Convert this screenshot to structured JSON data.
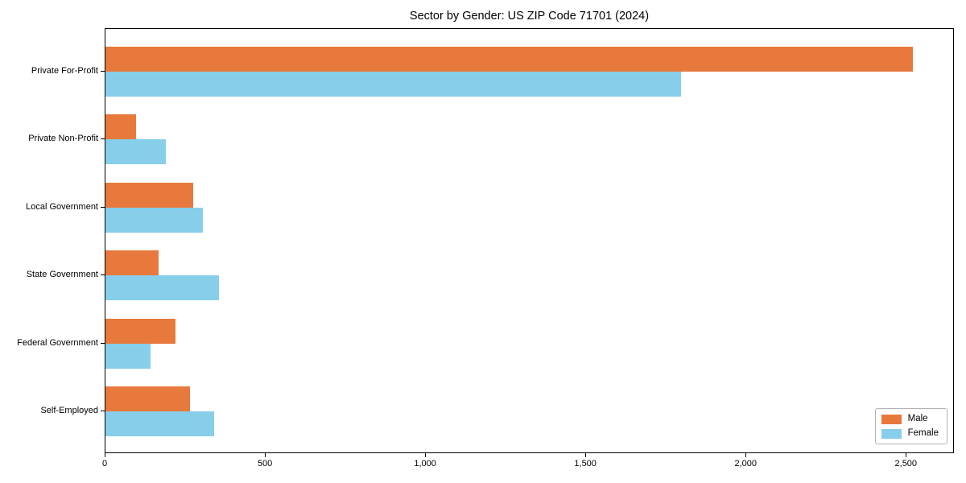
{
  "title": "Sector by Gender: US ZIP Code 71701 (2024)",
  "colors": {
    "male": "#e8793d",
    "female": "#87ceeb",
    "axis": "#000000",
    "legend_border": "#b3b3b3",
    "background": "#ffffff"
  },
  "legend": {
    "entries": [
      {
        "label": "Male",
        "color": "#e8793d"
      },
      {
        "label": "Female",
        "color": "#87ceeb"
      }
    ],
    "position": "lower right"
  },
  "chart_data": {
    "type": "bar",
    "orientation": "horizontal",
    "title": "Sector by Gender: US ZIP Code 71701 (2024)",
    "categories": [
      "Private For-Profit",
      "Private Non-Profit",
      "Local Government",
      "State Government",
      "Federal Government",
      "Self-Employed"
    ],
    "series": [
      {
        "name": "Male",
        "color": "#e8793d",
        "values": [
          2525,
          95,
          275,
          165,
          220,
          265
        ]
      },
      {
        "name": "Female",
        "color": "#87ceeb",
        "values": [
          1800,
          190,
          305,
          355,
          140,
          340
        ]
      }
    ],
    "xlabel": "",
    "ylabel": "",
    "xlim": [
      0,
      2650
    ],
    "xticks": [
      0,
      500,
      1000,
      1500,
      2000,
      2500
    ],
    "xtick_labels": [
      "0",
      "500",
      "1,000",
      "1,500",
      "2,000",
      "2,500"
    ],
    "grid": false,
    "legend_position": "lower right"
  }
}
